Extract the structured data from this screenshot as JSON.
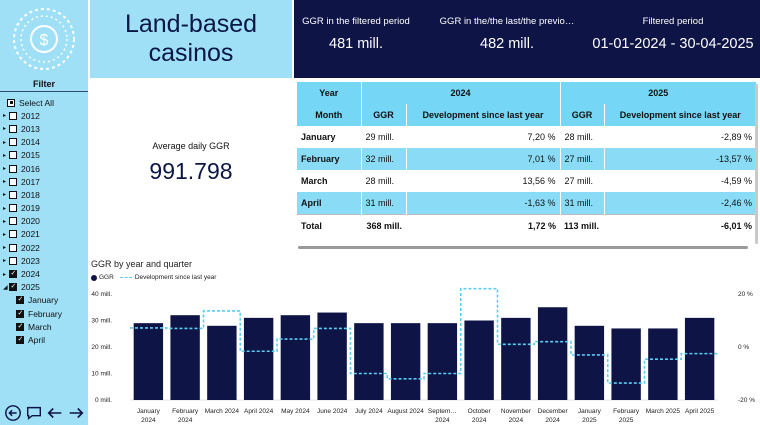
{
  "header": {
    "title_line1": "Land-based",
    "title_line2": "casinos",
    "kpis": [
      {
        "label": "GGR in the filtered period",
        "value": "481 mill."
      },
      {
        "label": "GGR in the/the last/the previo…",
        "value": "482 mill."
      },
      {
        "label": "Filtered period",
        "value": "01-01-2024 - 30-04-2025"
      }
    ]
  },
  "filter": {
    "title": "Filter",
    "select_all": "Select All",
    "years": [
      {
        "label": "2012",
        "state": "unchecked"
      },
      {
        "label": "2013",
        "state": "unchecked"
      },
      {
        "label": "2014",
        "state": "unchecked"
      },
      {
        "label": "2015",
        "state": "unchecked"
      },
      {
        "label": "2016",
        "state": "unchecked"
      },
      {
        "label": "2017",
        "state": "unchecked"
      },
      {
        "label": "2018",
        "state": "unchecked"
      },
      {
        "label": "2019",
        "state": "unchecked"
      },
      {
        "label": "2020",
        "state": "unchecked"
      },
      {
        "label": "2021",
        "state": "unchecked"
      },
      {
        "label": "2022",
        "state": "unchecked"
      },
      {
        "label": "2023",
        "state": "unchecked"
      },
      {
        "label": "2024",
        "state": "checked"
      },
      {
        "label": "2025",
        "state": "checked",
        "expanded": true
      }
    ],
    "months": [
      {
        "label": "January",
        "state": "checked"
      },
      {
        "label": "February",
        "state": "checked"
      },
      {
        "label": "March",
        "state": "checked"
      },
      {
        "label": "April",
        "state": "checked"
      }
    ]
  },
  "avg": {
    "label": "Average daily GGR",
    "value": "991.798"
  },
  "table": {
    "col_year": "Year",
    "col_month": "Month",
    "year_2024": "2024",
    "year_2025": "2025",
    "col_ggr": "GGR",
    "col_dev": "Development since last year",
    "rows": [
      {
        "month": "January",
        "ggr24": "29 mill.",
        "dev24": "7,20 %",
        "ggr25": "28 mill.",
        "dev25": "-2,89 %"
      },
      {
        "month": "February",
        "ggr24": "32 mill.",
        "dev24": "7,01 %",
        "ggr25": "27 mill.",
        "dev25": "-13,57 %"
      },
      {
        "month": "March",
        "ggr24": "28 mill.",
        "dev24": "13,56 %",
        "ggr25": "27 mill.",
        "dev25": "-4,59 %"
      },
      {
        "month": "April",
        "ggr24": "31 mill.",
        "dev24": "-1,63 %",
        "ggr25": "31 mill.",
        "dev25": "-2,46 %"
      }
    ],
    "total": {
      "label": "Total",
      "ggr24": "368 mill.",
      "dev24": "1,72 %",
      "ggr25": "113 mill.",
      "dev25": "-6,01 %"
    }
  },
  "chart_data": {
    "type": "bar",
    "title": "GGR by year and quarter",
    "legend": [
      "GGR",
      "Development since last year"
    ],
    "categories": [
      "January 2024",
      "February 2024",
      "March 2024",
      "April 2024",
      "May 2024",
      "June 2024",
      "July 2024",
      "August 2024",
      "Septem… 2024",
      "October 2024",
      "November 2024",
      "December 2024",
      "January 2025",
      "February 2025",
      "March 2025",
      "April 2025"
    ],
    "series": [
      {
        "name": "GGR",
        "type": "bar",
        "values": [
          29,
          32,
          28,
          31,
          32,
          33,
          29,
          29,
          29,
          30,
          31,
          35,
          28,
          27,
          27,
          31
        ]
      },
      {
        "name": "Development since last year",
        "type": "line",
        "values": [
          7.2,
          7.0,
          13.6,
          -1.6,
          3.0,
          7.0,
          -10.0,
          -12.0,
          -10.0,
          22.0,
          1.0,
          2.0,
          -3.0,
          -13.6,
          -4.6,
          -2.5
        ]
      }
    ],
    "y_left": {
      "ticks": [
        "0 mill.",
        "10 mill.",
        "20 mill.",
        "30 mill.",
        "40 mill."
      ],
      "range": [
        0,
        40
      ]
    },
    "y_right": {
      "ticks": [
        "-20 %",
        "0 %",
        "20 %"
      ],
      "range": [
        -20,
        20
      ]
    },
    "colors": {
      "bar": "#0e1446",
      "line": "#5ccdf2"
    }
  }
}
